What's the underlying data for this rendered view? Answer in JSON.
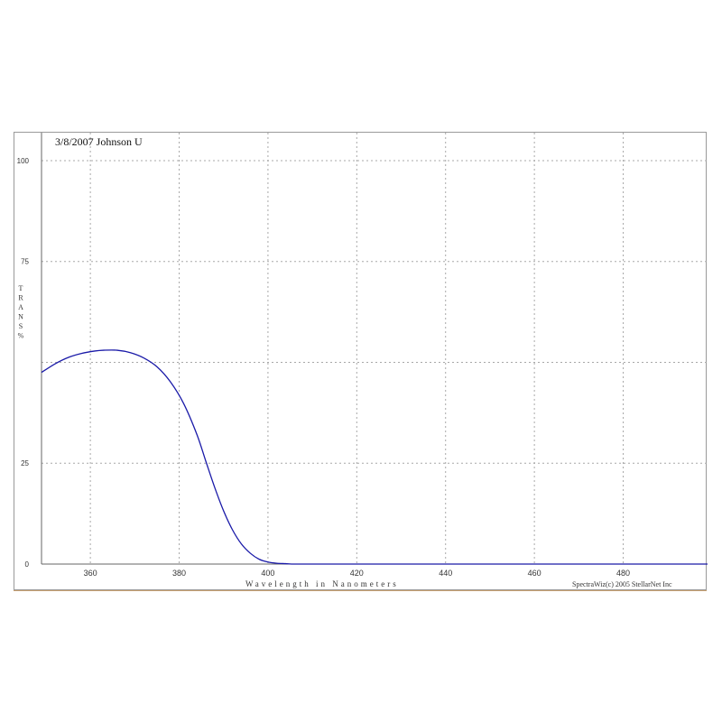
{
  "chart_data": {
    "type": "line",
    "title": "3/8/2007   Johnson U",
    "xlabel": "Wavelength in Nanometers",
    "ylabel": "TRANS %",
    "credit": "SpectraWiz(c) 2005 StellarNet Inc",
    "xlim": [
      349,
      499
    ],
    "ylim": [
      0,
      102
    ],
    "x_ticks": [
      360,
      380,
      400,
      420,
      440,
      460,
      480
    ],
    "y_ticks": [
      0,
      25,
      75,
      100
    ],
    "grid": true,
    "series": [
      {
        "color": "#1a1aa8",
        "x": [
          349,
          352,
          355,
          358,
          361,
          363,
          366,
          369,
          372,
          375,
          378,
          381,
          384,
          386,
          388,
          390,
          392,
          394,
          396,
          398,
          400,
          402,
          404,
          406,
          410,
          420,
          440,
          460,
          480,
          499
        ],
        "y": [
          47.5,
          49.6,
          51.2,
          52.2,
          52.8,
          53.0,
          53.0,
          52.4,
          51.1,
          48.9,
          45.2,
          39.8,
          32.1,
          25.5,
          19.0,
          13.2,
          8.5,
          5.0,
          2.7,
          1.2,
          0.5,
          0.2,
          0.1,
          0.0,
          0.0,
          0.0,
          0.0,
          0.0,
          0.0,
          0.0
        ]
      }
    ]
  }
}
